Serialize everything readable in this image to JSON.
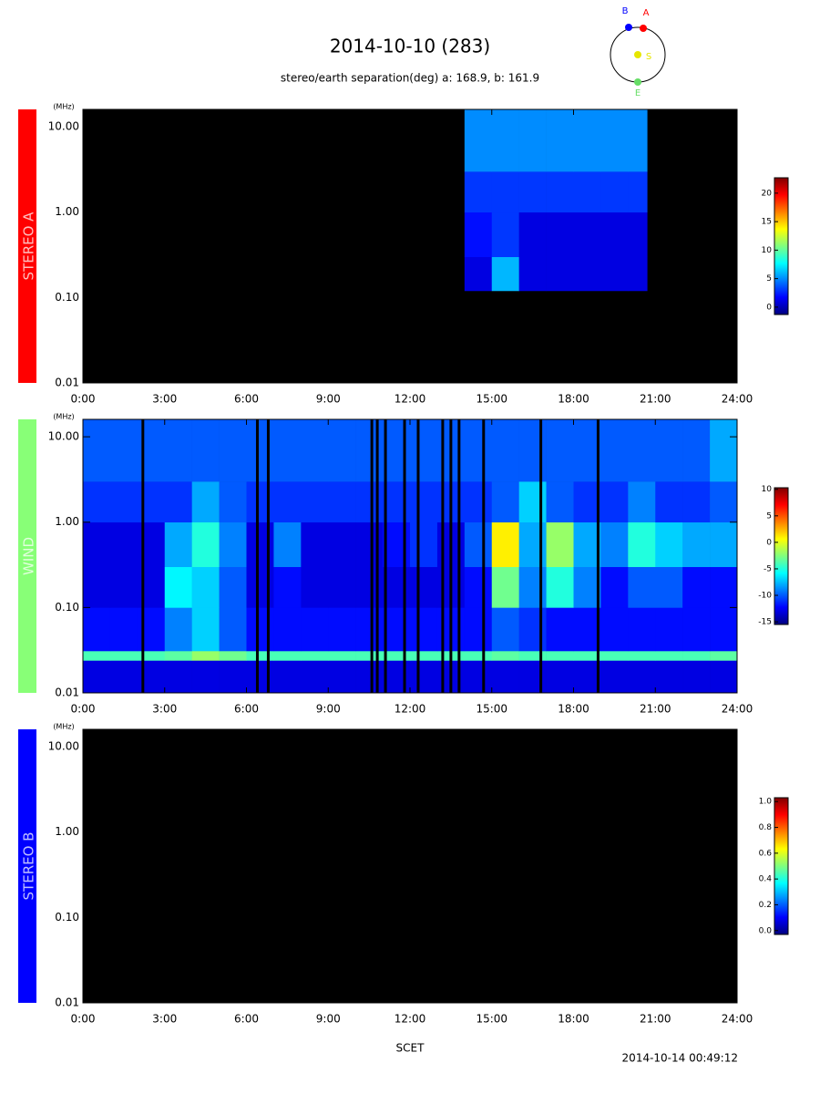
{
  "title": "2014-10-10 (283)",
  "subtitle": "stereo/earth separation(deg) a: 168.9, b: 161.9",
  "orbit": {
    "labels": [
      "B",
      "A",
      "S",
      "E"
    ],
    "colors": [
      "#0000ff",
      "#ff0000",
      "#e6e600",
      "#66dd66"
    ]
  },
  "x_label": "SCET",
  "footer": "2014-10-14 00:49:12",
  "chart_data": [
    {
      "type": "heatmap",
      "panel_label": "STEREO A",
      "label_color": "#ff0000",
      "y_unit": "(MHz)",
      "log_y": true,
      "colormap": "jet",
      "xlim": [
        0,
        24
      ],
      "ylim": [
        0.01,
        16
      ],
      "xticks": [
        {
          "value": 0,
          "label": "0:00"
        },
        {
          "value": 3,
          "label": "3:00"
        },
        {
          "value": 6,
          "label": "6:00"
        },
        {
          "value": 9,
          "label": "9:00"
        },
        {
          "value": 12,
          "label": "12:00"
        },
        {
          "value": 15,
          "label": "15:00"
        },
        {
          "value": 18,
          "label": "18:00"
        },
        {
          "value": 21,
          "label": "21:00"
        },
        {
          "value": 24,
          "label": "24:00"
        }
      ],
      "yticks": [
        {
          "value": 0.01,
          "label": "0.01"
        },
        {
          "value": 0.1,
          "label": "0.10"
        },
        {
          "value": 1,
          "label": "1.00"
        },
        {
          "value": 10,
          "label": "10.00"
        }
      ],
      "x_edges": [
        14,
        15,
        16,
        17,
        18,
        19,
        20,
        20.7
      ],
      "y_edges": [
        0.12,
        0.3,
        1,
        3,
        16
      ],
      "z": [
        [
          1,
          6,
          1,
          1,
          1,
          1,
          1
        ],
        [
          2,
          3,
          1,
          1,
          1,
          1,
          1
        ],
        [
          3,
          3,
          3,
          3,
          3,
          3,
          3
        ],
        [
          5,
          5,
          5,
          5,
          5,
          5,
          5
        ]
      ],
      "clim": [
        -1.3,
        22.7
      ],
      "cticks": [
        0,
        5,
        10,
        15,
        20
      ]
    },
    {
      "type": "heatmap",
      "panel_label": "WIND",
      "label_color": "#88ff77",
      "y_unit": "(MHz)",
      "log_y": true,
      "colormap": "jet",
      "xlim": [
        0,
        24
      ],
      "ylim": [
        0.01,
        16
      ],
      "xticks": [
        {
          "value": 0,
          "label": "0:00"
        },
        {
          "value": 3,
          "label": "3:00"
        },
        {
          "value": 6,
          "label": "6:00"
        },
        {
          "value": 9,
          "label": "9:00"
        },
        {
          "value": 12,
          "label": "12:00"
        },
        {
          "value": 15,
          "label": "15:00"
        },
        {
          "value": 18,
          "label": "18:00"
        },
        {
          "value": 21,
          "label": "21:00"
        },
        {
          "value": 24,
          "label": "24:00"
        }
      ],
      "yticks": [
        {
          "value": 0.01,
          "label": "0.01"
        },
        {
          "value": 0.1,
          "label": "0.10"
        },
        {
          "value": 1,
          "label": "1.00"
        },
        {
          "value": 10,
          "label": "10.00"
        }
      ],
      "x_edges": [
        0,
        1,
        2,
        3,
        4,
        5,
        6,
        7,
        8,
        9,
        10,
        11,
        12,
        13,
        14,
        15,
        16,
        17,
        18,
        19,
        20,
        21,
        22,
        23,
        24
      ],
      "y_edges": [
        0.01,
        0.024,
        0.031,
        0.1,
        0.3,
        1,
        3,
        16
      ],
      "z": [
        [
          -13,
          -13,
          -13,
          -13,
          -13,
          -13,
          -13,
          -13,
          -13,
          -13,
          -13,
          -13,
          -13,
          -13,
          -13,
          -13,
          -13,
          -13,
          -13,
          -13,
          -13,
          -13,
          -13,
          -13
        ],
        [
          -4,
          -4,
          -4,
          -3.5,
          -2,
          -3,
          -4,
          -4,
          -4,
          -4,
          -4,
          -4,
          -4,
          -4,
          -4,
          -3.5,
          -4,
          -4,
          -4,
          -4,
          -4,
          -4,
          -4,
          -3.5
        ],
        [
          -12,
          -12,
          -12,
          -9,
          -7,
          -10,
          -12,
          -12,
          -12,
          -12,
          -12,
          -12,
          -12,
          -12,
          -12,
          -10,
          -11,
          -12,
          -12,
          -12,
          -12,
          -12,
          -12,
          -12
        ],
        [
          -13,
          -13,
          -13,
          -6,
          -7,
          -10,
          -13,
          -12,
          -13,
          -13,
          -13,
          -13,
          -13,
          -13,
          -12,
          -3,
          -9,
          -5,
          -9,
          -12,
          -10,
          -10,
          -12,
          -12
        ],
        [
          -13,
          -13,
          -13,
          -8,
          -5,
          -9,
          -13,
          -9,
          -13,
          -13,
          -13,
          -12,
          -11,
          -13,
          -10,
          1,
          -8,
          -2,
          -8,
          -9,
          -5,
          -7,
          -8,
          -8
        ],
        [
          -11,
          -11,
          -11,
          -11,
          -8,
          -10,
          -11,
          -11,
          -11,
          -11,
          -11,
          -11,
          -11,
          -11,
          -11,
          -10,
          -7,
          -10,
          -11,
          -11,
          -9,
          -11,
          -11,
          -10
        ],
        [
          -10,
          -10,
          -10,
          -10,
          -10,
          -10,
          -10,
          -10,
          -10,
          -10,
          -10,
          -10,
          -10,
          -10,
          -10,
          -10,
          -10,
          -10,
          -10,
          -10,
          -10,
          -10,
          -10,
          -8
        ]
      ],
      "gaps": [
        2.2,
        6.4,
        6.8,
        10.6,
        10.8,
        11.1,
        11.8,
        12.3,
        13.2,
        13.5,
        13.8,
        14.7,
        16.8,
        18.9
      ],
      "clim": [
        -15.5,
        10.3
      ],
      "cticks": [
        10,
        5,
        0,
        -5,
        -10,
        -15
      ]
    },
    {
      "type": "heatmap",
      "panel_label": "STEREO B",
      "label_color": "#0000ff",
      "y_unit": "(MHz)",
      "log_y": true,
      "colormap": "jet",
      "xlim": [
        0,
        24
      ],
      "ylim": [
        0.01,
        16
      ],
      "xticks": [
        {
          "value": 0,
          "label": "0:00"
        },
        {
          "value": 3,
          "label": "3:00"
        },
        {
          "value": 6,
          "label": "6:00"
        },
        {
          "value": 9,
          "label": "9:00"
        },
        {
          "value": 12,
          "label": "12:00"
        },
        {
          "value": 15,
          "label": "15:00"
        },
        {
          "value": 18,
          "label": "18:00"
        },
        {
          "value": 21,
          "label": "21:00"
        },
        {
          "value": 24,
          "label": "24:00"
        }
      ],
      "yticks": [
        {
          "value": 0.01,
          "label": "0.01"
        },
        {
          "value": 0.1,
          "label": "0.10"
        },
        {
          "value": 1,
          "label": "1.00"
        },
        {
          "value": 10,
          "label": "10.00"
        }
      ],
      "clim": [
        -0.03,
        1.03
      ],
      "cticks": [
        {
          "value": 0,
          "label": "0.0"
        },
        {
          "value": 0.2,
          "label": "0.2"
        },
        {
          "value": 0.4,
          "label": "0.4"
        },
        {
          "value": 0.6,
          "label": "0.6"
        },
        {
          "value": 0.8,
          "label": "0.8"
        },
        {
          "value": 1,
          "label": "1.0"
        }
      ]
    }
  ]
}
